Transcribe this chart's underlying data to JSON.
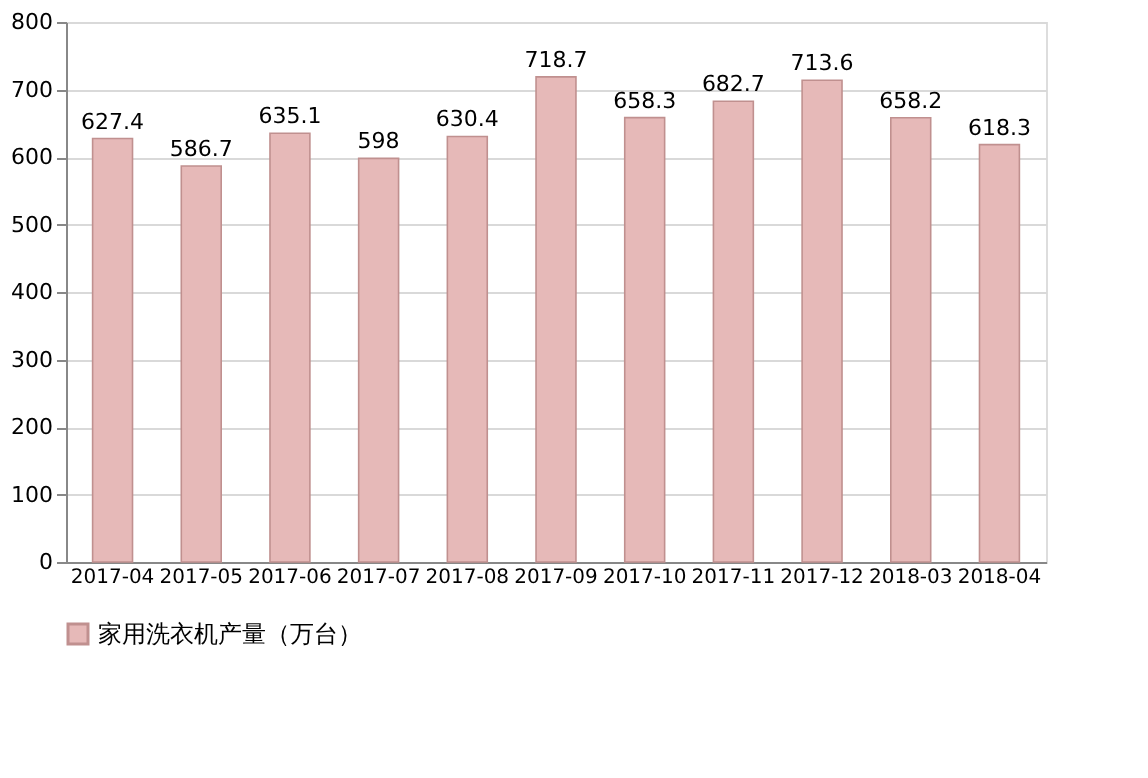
{
  "chart_data": {
    "type": "bar",
    "categories": [
      "2017-04",
      "2017-05",
      "2017-06",
      "2017-07",
      "2017-08",
      "2017-09",
      "2017-10",
      "2017-11",
      "2017-12",
      "2018-03",
      "2018-04"
    ],
    "series": [
      {
        "name": "家用洗衣机产量（万台）",
        "color": "#e6b9b8",
        "values": [
          627.4,
          586.7,
          635.1,
          598,
          630.4,
          718.7,
          658.3,
          682.7,
          713.6,
          658.2,
          618.3
        ]
      }
    ],
    "ylim": [
      0,
      800
    ],
    "yticks": [
      0,
      100,
      200,
      300,
      400,
      500,
      600,
      700,
      800
    ],
    "grid": "y",
    "data_labels": true,
    "legend": "bottom"
  }
}
